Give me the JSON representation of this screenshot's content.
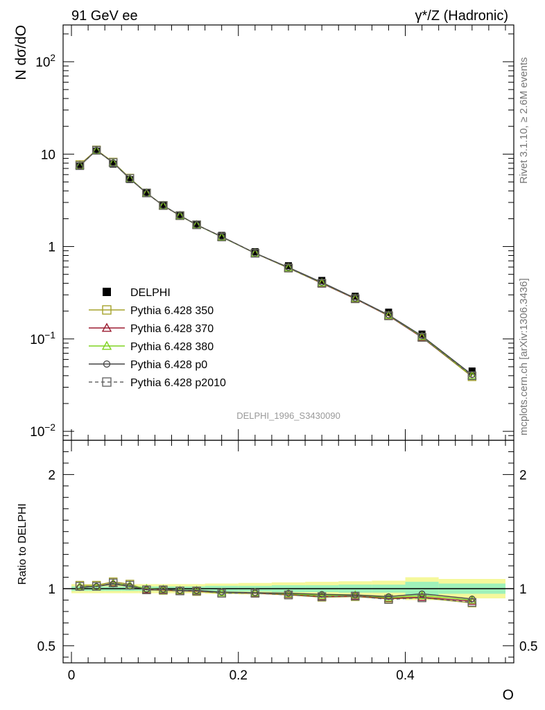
{
  "header": {
    "left": "91 GeV ee",
    "right": "γ*/Z (Hadronic)"
  },
  "side_labels": {
    "rivet": "Rivet 3.1.10, ≥ 2.6M events",
    "mcplots": "mcplots.cern.ch [arXiv:1306.3436]"
  },
  "watermark": "DELPHI_1996_S3430090",
  "chart_data": [
    {
      "type": "line",
      "ylabel": "N dσ/dO",
      "yscale": "log",
      "ylim": [
        0.008,
        250
      ],
      "ytick_labels": [
        "10^-2",
        "10^-1",
        "1",
        "10",
        "10^2"
      ],
      "legend_position": "middle-left",
      "x": [
        0.01,
        0.03,
        0.05,
        0.07,
        0.09,
        0.11,
        0.13,
        0.15,
        0.18,
        0.22,
        0.26,
        0.3,
        0.34,
        0.38,
        0.42,
        0.48
      ],
      "series": [
        {
          "name": "DELPHI",
          "style": "data",
          "color": "#000000",
          "values": [
            7.4,
            10.8,
            7.8,
            5.3,
            3.8,
            2.8,
            2.2,
            1.75,
            1.32,
            0.88,
            0.62,
            0.43,
            0.29,
            0.195,
            0.113,
            0.045
          ]
        },
        {
          "name": "Pythia 6.428 350",
          "style": "mc",
          "marker": "square-open",
          "color": "#a5a32b",
          "dash": "",
          "values": [
            7.7,
            11.1,
            8.2,
            5.5,
            3.8,
            2.78,
            2.16,
            1.72,
            1.27,
            0.845,
            0.585,
            0.4,
            0.272,
            0.178,
            0.104,
            0.039
          ]
        },
        {
          "name": "Pythia 6.428 370",
          "style": "mc",
          "marker": "triangle-open",
          "color": "#9b1b30",
          "dash": "",
          "values": [
            7.6,
            11.0,
            8.1,
            5.45,
            3.78,
            2.77,
            2.16,
            1.72,
            1.28,
            0.845,
            0.59,
            0.4,
            0.272,
            0.178,
            0.104,
            0.04
          ]
        },
        {
          "name": "Pythia 6.428 380",
          "style": "mc",
          "marker": "triangle-open",
          "color": "#7fd320",
          "dash": "",
          "values": [
            7.55,
            11.0,
            8.1,
            5.45,
            3.8,
            2.78,
            2.16,
            1.72,
            1.27,
            0.85,
            0.59,
            0.405,
            0.275,
            0.18,
            0.106,
            0.04
          ]
        },
        {
          "name": "Pythia 6.428 p0",
          "style": "mc",
          "marker": "circle-open",
          "color": "#444444",
          "dash": "",
          "values": [
            7.45,
            11.0,
            8.05,
            5.4,
            3.78,
            2.78,
            2.17,
            1.72,
            1.28,
            0.85,
            0.595,
            0.41,
            0.276,
            0.182,
            0.108,
            0.041
          ]
        },
        {
          "name": "Pythia 6.428 p2010",
          "style": "mc",
          "marker": "square-open",
          "color": "#666666",
          "dash": "5,4",
          "values": [
            7.5,
            11.0,
            8.1,
            5.45,
            3.8,
            2.78,
            2.16,
            1.72,
            1.27,
            0.845,
            0.585,
            0.4,
            0.272,
            0.178,
            0.104,
            0.04
          ]
        }
      ]
    },
    {
      "type": "line",
      "ylabel": "Ratio to DELPHI",
      "xlabel": "O",
      "xlim": [
        -0.01,
        0.53
      ],
      "ylim": [
        0.35,
        2.3
      ],
      "ytick_labels": [
        "0.5",
        "1",
        "2"
      ],
      "xtick_labels": [
        "0",
        "0.2",
        "0.4"
      ],
      "x": [
        0.01,
        0.03,
        0.05,
        0.07,
        0.09,
        0.11,
        0.13,
        0.15,
        0.18,
        0.22,
        0.26,
        0.3,
        0.34,
        0.38,
        0.42,
        0.48
      ],
      "band_edges": [
        0.0,
        0.02,
        0.04,
        0.06,
        0.08,
        0.1,
        0.12,
        0.14,
        0.16,
        0.2,
        0.24,
        0.28,
        0.32,
        0.36,
        0.4,
        0.44,
        0.52
      ],
      "band_stat": [
        0.02,
        0.02,
        0.02,
        0.02,
        0.02,
        0.02,
        0.02,
        0.02,
        0.025,
        0.025,
        0.03,
        0.03,
        0.035,
        0.035,
        0.06,
        0.045
      ],
      "band_total": [
        0.04,
        0.04,
        0.04,
        0.04,
        0.04,
        0.04,
        0.04,
        0.04,
        0.045,
        0.05,
        0.055,
        0.06,
        0.065,
        0.07,
        0.1,
        0.085
      ],
      "series": [
        {
          "name": "Pythia 6.428 350",
          "marker": "square-open",
          "color": "#a5a32b",
          "dash": "",
          "values": [
            1.03,
            1.03,
            1.06,
            1.04,
            0.99,
            0.985,
            0.98,
            0.975,
            0.96,
            0.96,
            0.945,
            0.925,
            0.93,
            0.91,
            0.92,
            0.875
          ]
        },
        {
          "name": "Pythia 6.428 370",
          "marker": "triangle-open",
          "color": "#9b1b30",
          "dash": "",
          "values": [
            1.02,
            1.02,
            1.05,
            1.03,
            0.99,
            0.99,
            0.98,
            0.98,
            0.965,
            0.96,
            0.95,
            0.93,
            0.935,
            0.915,
            0.925,
            0.89
          ]
        },
        {
          "name": "Pythia 6.428 380",
          "marker": "triangle-open",
          "color": "#7fd320",
          "dash": "",
          "values": [
            1.02,
            1.02,
            1.045,
            1.03,
            1.0,
            0.995,
            0.985,
            0.985,
            0.965,
            0.965,
            0.955,
            0.94,
            0.945,
            0.92,
            0.94,
            0.9
          ]
        },
        {
          "name": "Pythia 6.428 p0",
          "marker": "circle-open",
          "color": "#444444",
          "dash": "",
          "values": [
            1.01,
            1.02,
            1.04,
            1.02,
            0.995,
            0.995,
            0.985,
            0.985,
            0.97,
            0.965,
            0.96,
            0.95,
            0.945,
            0.93,
            0.955,
            0.91
          ]
        },
        {
          "name": "Pythia 6.428 p2010",
          "marker": "square-open",
          "color": "#666666",
          "dash": "5,4",
          "values": [
            1.02,
            1.02,
            1.05,
            1.03,
            0.99,
            0.99,
            0.98,
            0.98,
            0.96,
            0.96,
            0.945,
            0.93,
            0.935,
            0.905,
            0.92,
            0.88
          ]
        }
      ]
    }
  ]
}
